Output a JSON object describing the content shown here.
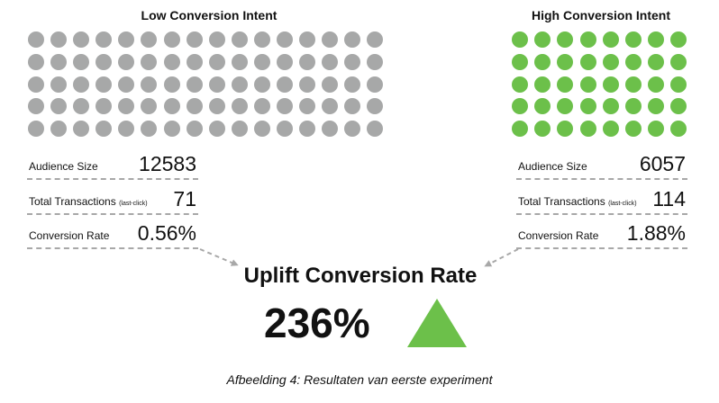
{
  "segments": {
    "low": {
      "title": "Low Conversion Intent",
      "dot_count": 80,
      "dot_color": "#a7a8a8",
      "metrics": [
        {
          "label": "Audience Size",
          "sub": "",
          "value": "12583"
        },
        {
          "label": "Total Transactions",
          "sub": "(last-click)",
          "value": "71"
        },
        {
          "label": "Conversion Rate",
          "sub": "",
          "value": "0.56%"
        }
      ]
    },
    "high": {
      "title": "High Conversion Intent",
      "dot_count": 40,
      "dot_color": "#6cc04a",
      "metrics": [
        {
          "label": "Audience Size",
          "sub": "",
          "value": "6057"
        },
        {
          "label": "Total Transactions",
          "sub": "(last-click)",
          "value": "114"
        },
        {
          "label": "Conversion Rate",
          "sub": "",
          "value": "1.88%"
        }
      ]
    }
  },
  "uplift": {
    "title": "Uplift Conversion Rate",
    "value": "236%",
    "indicator": "up-triangle-icon",
    "indicator_color": "#6cc04a"
  },
  "arrow_color": "#a8a8a8",
  "caption": "Afbeelding 4: Resultaten van eerste experiment"
}
